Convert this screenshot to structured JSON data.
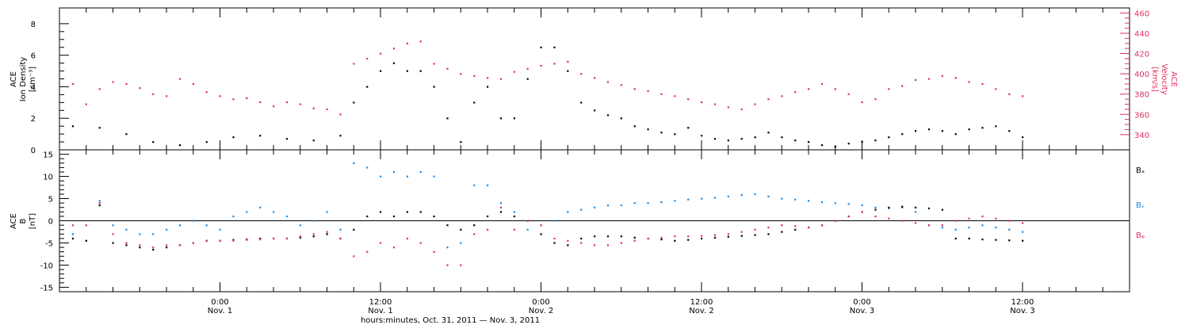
{
  "chart_data": [
    {
      "type": "scatter",
      "panel": "top",
      "ylabel_left": [
        "ACE",
        "Ion Density",
        "[cm⁻³]"
      ],
      "ylabel_right": [
        "ACE",
        "Velocity",
        "[km/s]"
      ],
      "yticks_left": [
        0,
        2,
        4,
        6,
        8
      ],
      "ylim_left": [
        0,
        9
      ],
      "yticks_right": [
        340,
        360,
        380,
        400,
        420,
        440,
        460
      ],
      "ylim_right": [
        325,
        465
      ],
      "colors": {
        "density": "#000000",
        "velocity": "#e03060"
      },
      "series": [
        {
          "name": "Ion Density",
          "x": [
            -11,
            -9,
            -7,
            -5,
            -3,
            -1,
            1,
            3,
            5,
            7,
            9,
            10,
            11,
            12,
            13,
            14,
            15,
            16,
            17,
            18,
            19,
            20,
            21,
            22,
            23,
            24,
            25,
            26,
            27,
            28,
            29,
            30,
            31,
            32,
            33,
            34,
            35,
            36,
            37,
            38,
            39,
            40,
            41,
            42,
            43,
            44,
            45,
            46,
            47,
            48,
            49,
            50,
            51,
            52,
            53,
            54,
            55,
            56,
            57,
            58,
            59,
            60
          ],
          "y": [
            1.5,
            1.4,
            1.0,
            0.5,
            0.3,
            0.5,
            0.8,
            0.9,
            0.7,
            0.6,
            0.9,
            3,
            4,
            5,
            5.5,
            5,
            5,
            4,
            2,
            0.5,
            3,
            4,
            2,
            2,
            4.5,
            6.5,
            6.5,
            5,
            3,
            2.5,
            2.2,
            2,
            1.5,
            1.3,
            1.1,
            1,
            1.4,
            0.9,
            0.7,
            0.6,
            0.7,
            0.8,
            1.1,
            0.8,
            0.6,
            0.5,
            0.3,
            0.2,
            0.4,
            0.5,
            0.6,
            0.8,
            1.0,
            1.2,
            1.3,
            1.2,
            1.0,
            1.3,
            1.4,
            1.5,
            1.2,
            0.8
          ]
        },
        {
          "name": "Velocity",
          "x": [
            -11,
            -10,
            -9,
            -8,
            -7,
            -6,
            -5,
            -4,
            -3,
            -2,
            -1,
            0,
            1,
            2,
            3,
            4,
            5,
            6,
            7,
            8,
            9,
            10,
            11,
            12,
            13,
            14,
            15,
            16,
            17,
            18,
            19,
            20,
            21,
            22,
            23,
            24,
            25,
            26,
            27,
            28,
            29,
            30,
            31,
            32,
            33,
            34,
            35,
            36,
            37,
            38,
            39,
            40,
            41,
            42,
            43,
            44,
            45,
            46,
            47,
            48,
            49,
            50,
            51,
            52,
            53,
            54,
            55,
            56,
            57,
            58,
            59,
            60
          ],
          "y": [
            390,
            370,
            385,
            392,
            390,
            386,
            380,
            378,
            395,
            390,
            382,
            378,
            375,
            376,
            372,
            368,
            372,
            370,
            366,
            365,
            360,
            410,
            415,
            420,
            425,
            430,
            432,
            410,
            405,
            400,
            398,
            396,
            395,
            402,
            405,
            408,
            410,
            412,
            400,
            396,
            392,
            389,
            385,
            383,
            380,
            378,
            375,
            372,
            370,
            367,
            365,
            370,
            375,
            378,
            382,
            385,
            390,
            385,
            380,
            372,
            375,
            385,
            388,
            394,
            395,
            398,
            396,
            392,
            390,
            385,
            380,
            378
          ]
        }
      ]
    },
    {
      "type": "scatter",
      "panel": "bottom",
      "ylabel_left": [
        "ACE",
        "B",
        "[nT]"
      ],
      "yticks": [
        -15,
        -10,
        -5,
        0,
        5,
        10,
        15
      ],
      "ylim": [
        -16,
        16
      ],
      "zero_line": true,
      "legend": [
        "Bₓ",
        "Bᵧ",
        "Bᵩ"
      ],
      "legend_placement": "right",
      "colors": {
        "Bx": "#000000",
        "By": "#1a8ce8",
        "Bz": "#e03060"
      },
      "series": [
        {
          "name": "Bx",
          "x": [
            -11,
            -10,
            -9,
            -8,
            -7,
            -6,
            -5,
            -4,
            -3,
            -2,
            -1,
            0,
            1,
            2,
            3,
            4,
            5,
            6,
            7,
            8,
            9,
            10,
            11,
            12,
            13,
            14,
            15,
            16,
            17,
            18,
            19,
            20,
            21,
            22,
            23,
            24,
            25,
            26,
            27,
            28,
            29,
            30,
            31,
            32,
            33,
            34,
            35,
            36,
            37,
            38,
            39,
            40,
            41,
            42,
            43,
            44,
            45,
            46,
            47,
            48,
            49,
            50,
            51,
            52,
            53,
            54,
            55,
            56,
            57,
            58,
            59,
            60
          ],
          "y": [
            -4,
            -4.5,
            3.5,
            -5,
            -5.5,
            -6,
            -6.5,
            -6,
            -5.5,
            -5,
            -4.5,
            -4.5,
            -4.3,
            -4.2,
            -4,
            -4,
            -4,
            -3.8,
            -3.5,
            -3,
            -4,
            -2,
            1,
            2,
            1,
            2,
            2,
            1,
            -1,
            -2,
            -1,
            1,
            2,
            1,
            0,
            -3,
            -5,
            -5.5,
            -4,
            -3.5,
            -3.5,
            -3.5,
            -3.8,
            -4,
            -4.2,
            -4.5,
            -4.3,
            -4,
            -3.8,
            -3.6,
            -3.4,
            -3.2,
            -3,
            -2.5,
            -2,
            -1.5,
            -1,
            0,
            1,
            2,
            2.5,
            3,
            3.2,
            3,
            2.8,
            2.5,
            -4,
            -4,
            -4.2,
            -4.3,
            -4.4,
            -4.5
          ]
        },
        {
          "name": "By",
          "x": [
            -11,
            -10,
            -9,
            -8,
            -7,
            -6,
            -5,
            -4,
            -3,
            -2,
            -1,
            0,
            1,
            2,
            3,
            4,
            5,
            6,
            7,
            8,
            9,
            10,
            11,
            12,
            13,
            14,
            15,
            16,
            17,
            18,
            19,
            20,
            21,
            22,
            23,
            24,
            25,
            26,
            27,
            28,
            29,
            30,
            31,
            32,
            33,
            34,
            35,
            36,
            37,
            38,
            39,
            40,
            41,
            42,
            43,
            44,
            45,
            46,
            47,
            48,
            49,
            50,
            51,
            52,
            53,
            54,
            55,
            56,
            57,
            58,
            59,
            60
          ],
          "y": [
            -3,
            -4.5,
            4.5,
            -1,
            -2,
            -3,
            -3,
            -2,
            -1,
            0,
            -1,
            -2,
            1,
            2,
            3,
            2,
            1,
            -1,
            0,
            2,
            -2,
            13,
            12,
            10,
            11,
            10,
            11,
            10,
            -6,
            -5,
            8,
            8,
            4,
            2,
            -2,
            -1,
            0,
            2,
            2.5,
            3,
            3.5,
            3.5,
            4,
            4,
            4.2,
            4.5,
            4.8,
            5,
            5.2,
            5.5,
            5.8,
            6,
            5.5,
            5,
            4.8,
            4.5,
            4.2,
            4,
            3.8,
            3.5,
            3,
            2.8,
            3,
            2,
            -1,
            -1.5,
            -2,
            -1.5,
            -1,
            -1.5,
            -2,
            -2.5
          ]
        },
        {
          "name": "Bz",
          "x": [
            -11,
            -10,
            -9,
            -8,
            -7,
            -6,
            -5,
            -4,
            -3,
            -2,
            -1,
            0,
            1,
            2,
            3,
            4,
            5,
            6,
            7,
            8,
            9,
            10,
            11,
            12,
            13,
            14,
            15,
            16,
            17,
            18,
            19,
            20,
            21,
            22,
            23,
            24,
            25,
            26,
            27,
            28,
            29,
            30,
            31,
            32,
            33,
            34,
            35,
            36,
            37,
            38,
            39,
            40,
            41,
            42,
            43,
            44,
            45,
            46,
            47,
            48,
            49,
            50,
            51,
            52,
            53,
            54,
            55,
            56,
            57,
            58,
            59,
            60
          ],
          "y": [
            -1,
            -1,
            4,
            -3,
            -5,
            -5.5,
            -6,
            -5.5,
            -5.5,
            -5,
            -4.5,
            -4.5,
            -4.5,
            -4.3,
            -4.2,
            -4,
            -4,
            -3.5,
            -3,
            -2.5,
            -4,
            -8,
            -7,
            -5,
            -6,
            -4,
            -5,
            -7,
            -10,
            -10,
            -3,
            -2,
            3,
            -2,
            0,
            -1,
            -4,
            -4.5,
            -5,
            -5.5,
            -5.5,
            -5,
            -4.5,
            -4,
            -3.8,
            -3.5,
            -3.5,
            -3.4,
            -3.2,
            -3,
            -2.5,
            -2,
            -1.5,
            -1,
            -1.2,
            -1.5,
            -1,
            0,
            1,
            2,
            1,
            0.5,
            0,
            -0.5,
            -1,
            -1,
            0,
            0.5,
            1,
            0.5,
            0,
            -0.5
          ]
        }
      ]
    }
  ],
  "xaxis": {
    "xlim_hours": [
      -12,
      68
    ],
    "ticks": [
      {
        "hours": 0,
        "time": "0:00",
        "date": "Nov. 1"
      },
      {
        "hours": 12,
        "time": "12:00",
        "date": "Nov. 1"
      },
      {
        "hours": 24,
        "time": "0:00",
        "date": "Nov. 2"
      },
      {
        "hours": 36,
        "time": "12:00",
        "date": "Nov. 2"
      },
      {
        "hours": 48,
        "time": "0:00",
        "date": "Nov. 3"
      },
      {
        "hours": 60,
        "time": "12:00",
        "date": "Nov. 3"
      }
    ],
    "label": "hours:minutes, Oct. 31, 2011 — Nov.  3, 2011"
  }
}
